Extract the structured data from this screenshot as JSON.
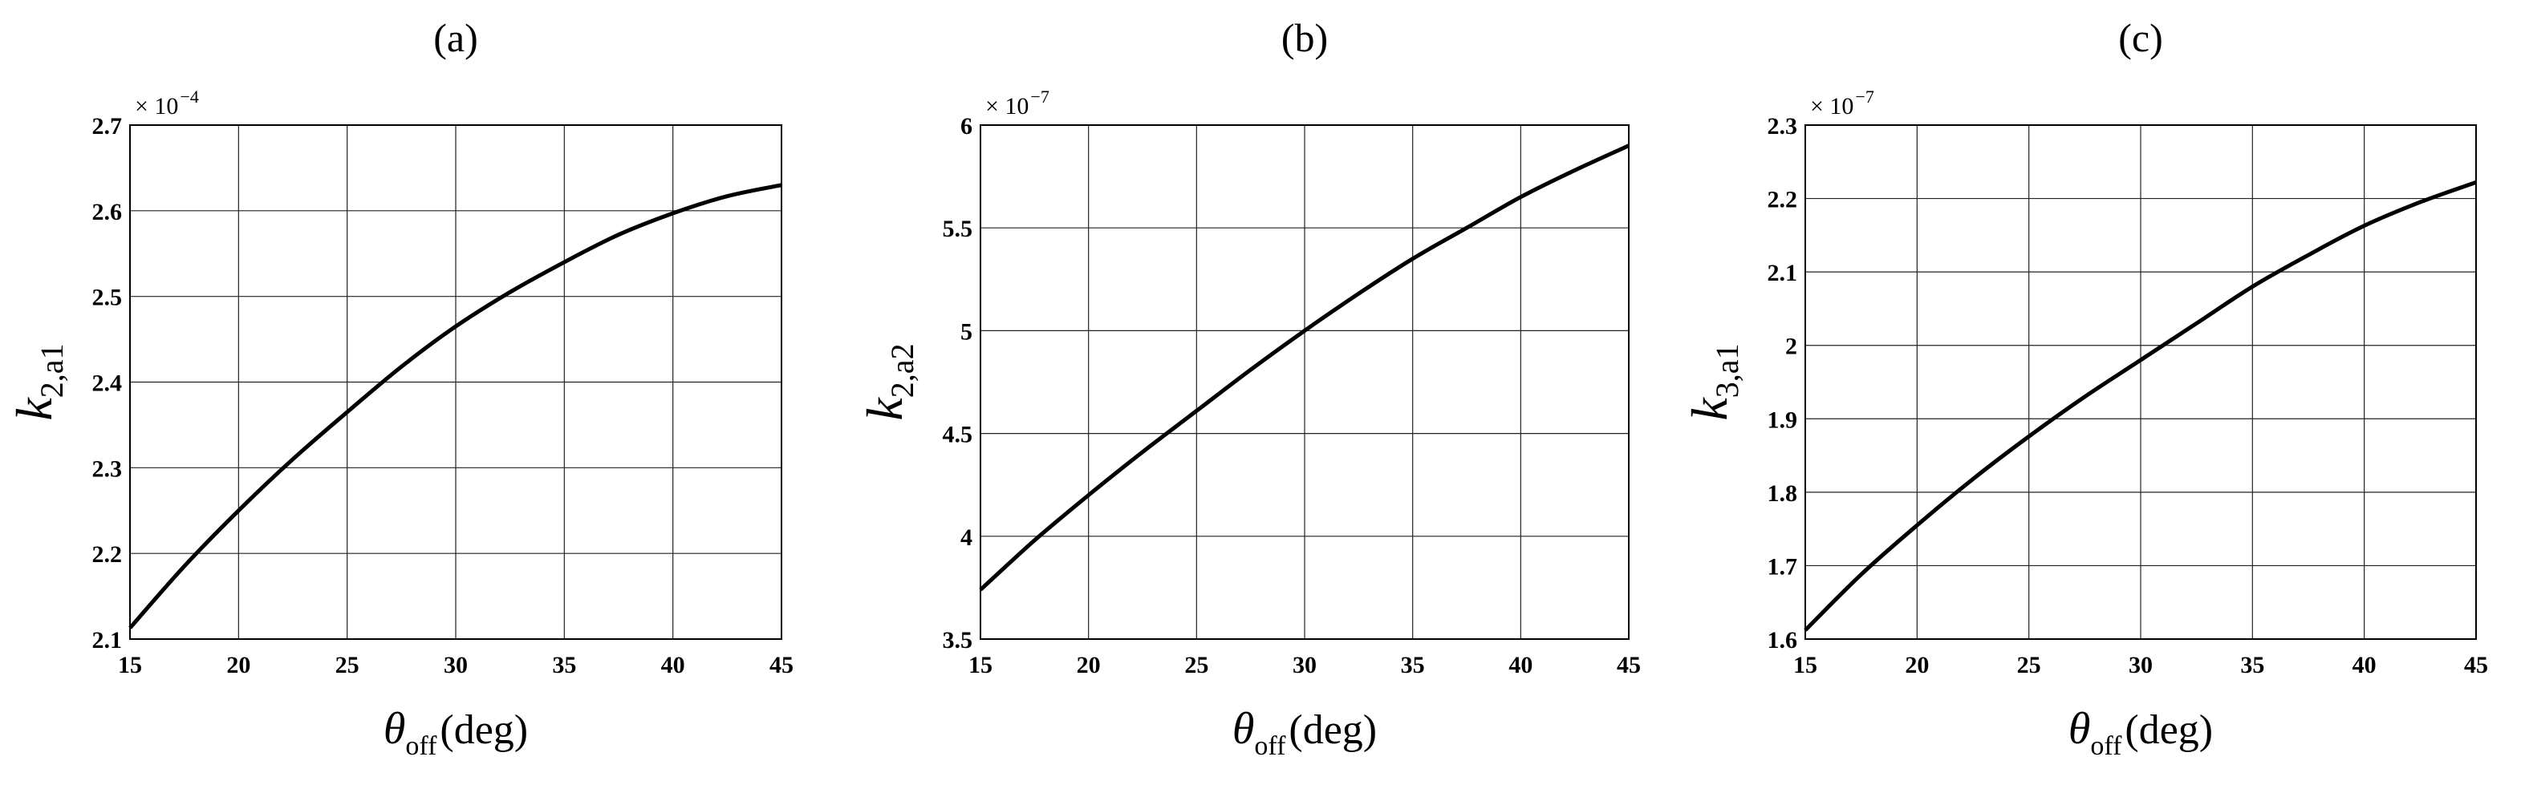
{
  "chart_data": [
    {
      "type": "line",
      "panel_label": "(a)",
      "ylabel_main": "k",
      "ylabel_sub": "2,a1",
      "xlabel_symbol": "θ",
      "xlabel_sub": "off",
      "xlabel_unit": "(deg)",
      "xlim": [
        15,
        45
      ],
      "ylim": [
        2.1,
        2.7
      ],
      "xticks": [
        15,
        20,
        25,
        30,
        35,
        40,
        45
      ],
      "yticks": [
        2.1,
        2.2,
        2.3,
        2.4,
        2.5,
        2.6,
        2.7
      ],
      "ytick_labels": [
        "2.1",
        "2.2",
        "2.3",
        "2.4",
        "2.5",
        "2.6",
        "2.7"
      ],
      "xtick_labels": [
        "15",
        "20",
        "25",
        "30",
        "35",
        "40",
        "45"
      ],
      "multiplier_base": "× 10",
      "multiplier_exp": "−4",
      "grid": true,
      "series": [
        {
          "x": [
            15,
            17.5,
            20,
            22.5,
            25,
            27.5,
            30,
            32.5,
            35,
            37.5,
            40,
            42.5,
            45
          ],
          "values": [
            2.113,
            2.185,
            2.25,
            2.31,
            2.365,
            2.418,
            2.465,
            2.505,
            2.54,
            2.572,
            2.597,
            2.617,
            2.63
          ]
        }
      ]
    },
    {
      "type": "line",
      "panel_label": "(b)",
      "ylabel_main": "k",
      "ylabel_sub": "2,a2",
      "xlabel_symbol": "θ",
      "xlabel_sub": "off",
      "xlabel_unit": "(deg)",
      "xlim": [
        15,
        45
      ],
      "ylim": [
        3.5,
        6
      ],
      "xticks": [
        15,
        20,
        25,
        30,
        35,
        40,
        45
      ],
      "yticks": [
        3.5,
        4,
        4.5,
        5,
        5.5,
        6
      ],
      "ytick_labels": [
        "3.5",
        "4",
        "4.5",
        "5",
        "5.5",
        "6"
      ],
      "xtick_labels": [
        "15",
        "20",
        "25",
        "30",
        "35",
        "40",
        "45"
      ],
      "multiplier_base": "× 10",
      "multiplier_exp": "−7",
      "grid": true,
      "series": [
        {
          "x": [
            15,
            17.5,
            20,
            22.5,
            25,
            27.5,
            30,
            32.5,
            35,
            37.5,
            40,
            42.5,
            45
          ],
          "values": [
            3.74,
            3.98,
            4.2,
            4.41,
            4.61,
            4.81,
            5.0,
            5.18,
            5.35,
            5.5,
            5.65,
            5.78,
            5.9
          ]
        }
      ]
    },
    {
      "type": "line",
      "panel_label": "(c)",
      "ylabel_main": "k",
      "ylabel_sub": "3,a1",
      "xlabel_symbol": "θ",
      "xlabel_sub": "off",
      "xlabel_unit": "(deg)",
      "xlim": [
        15,
        45
      ],
      "ylim": [
        1.6,
        2.3
      ],
      "xticks": [
        15,
        20,
        25,
        30,
        35,
        40,
        45
      ],
      "yticks": [
        1.6,
        1.7,
        1.8,
        1.9,
        2.0,
        2.1,
        2.2,
        2.3
      ],
      "ytick_labels": [
        "1.6",
        "1.7",
        "1.8",
        "1.9",
        "2",
        "2.1",
        "2.2",
        "2.3"
      ],
      "xtick_labels": [
        "15",
        "20",
        "25",
        "30",
        "35",
        "40",
        "45"
      ],
      "multiplier_base": "× 10",
      "multiplier_exp": "−7",
      "grid": true,
      "series": [
        {
          "x": [
            15,
            17.5,
            20,
            22.5,
            25,
            27.5,
            30,
            32.5,
            35,
            37.5,
            40,
            42.5,
            45
          ],
          "values": [
            1.612,
            1.688,
            1.755,
            1.818,
            1.876,
            1.93,
            1.98,
            2.03,
            2.08,
            2.123,
            2.163,
            2.195,
            2.222
          ]
        }
      ]
    }
  ]
}
